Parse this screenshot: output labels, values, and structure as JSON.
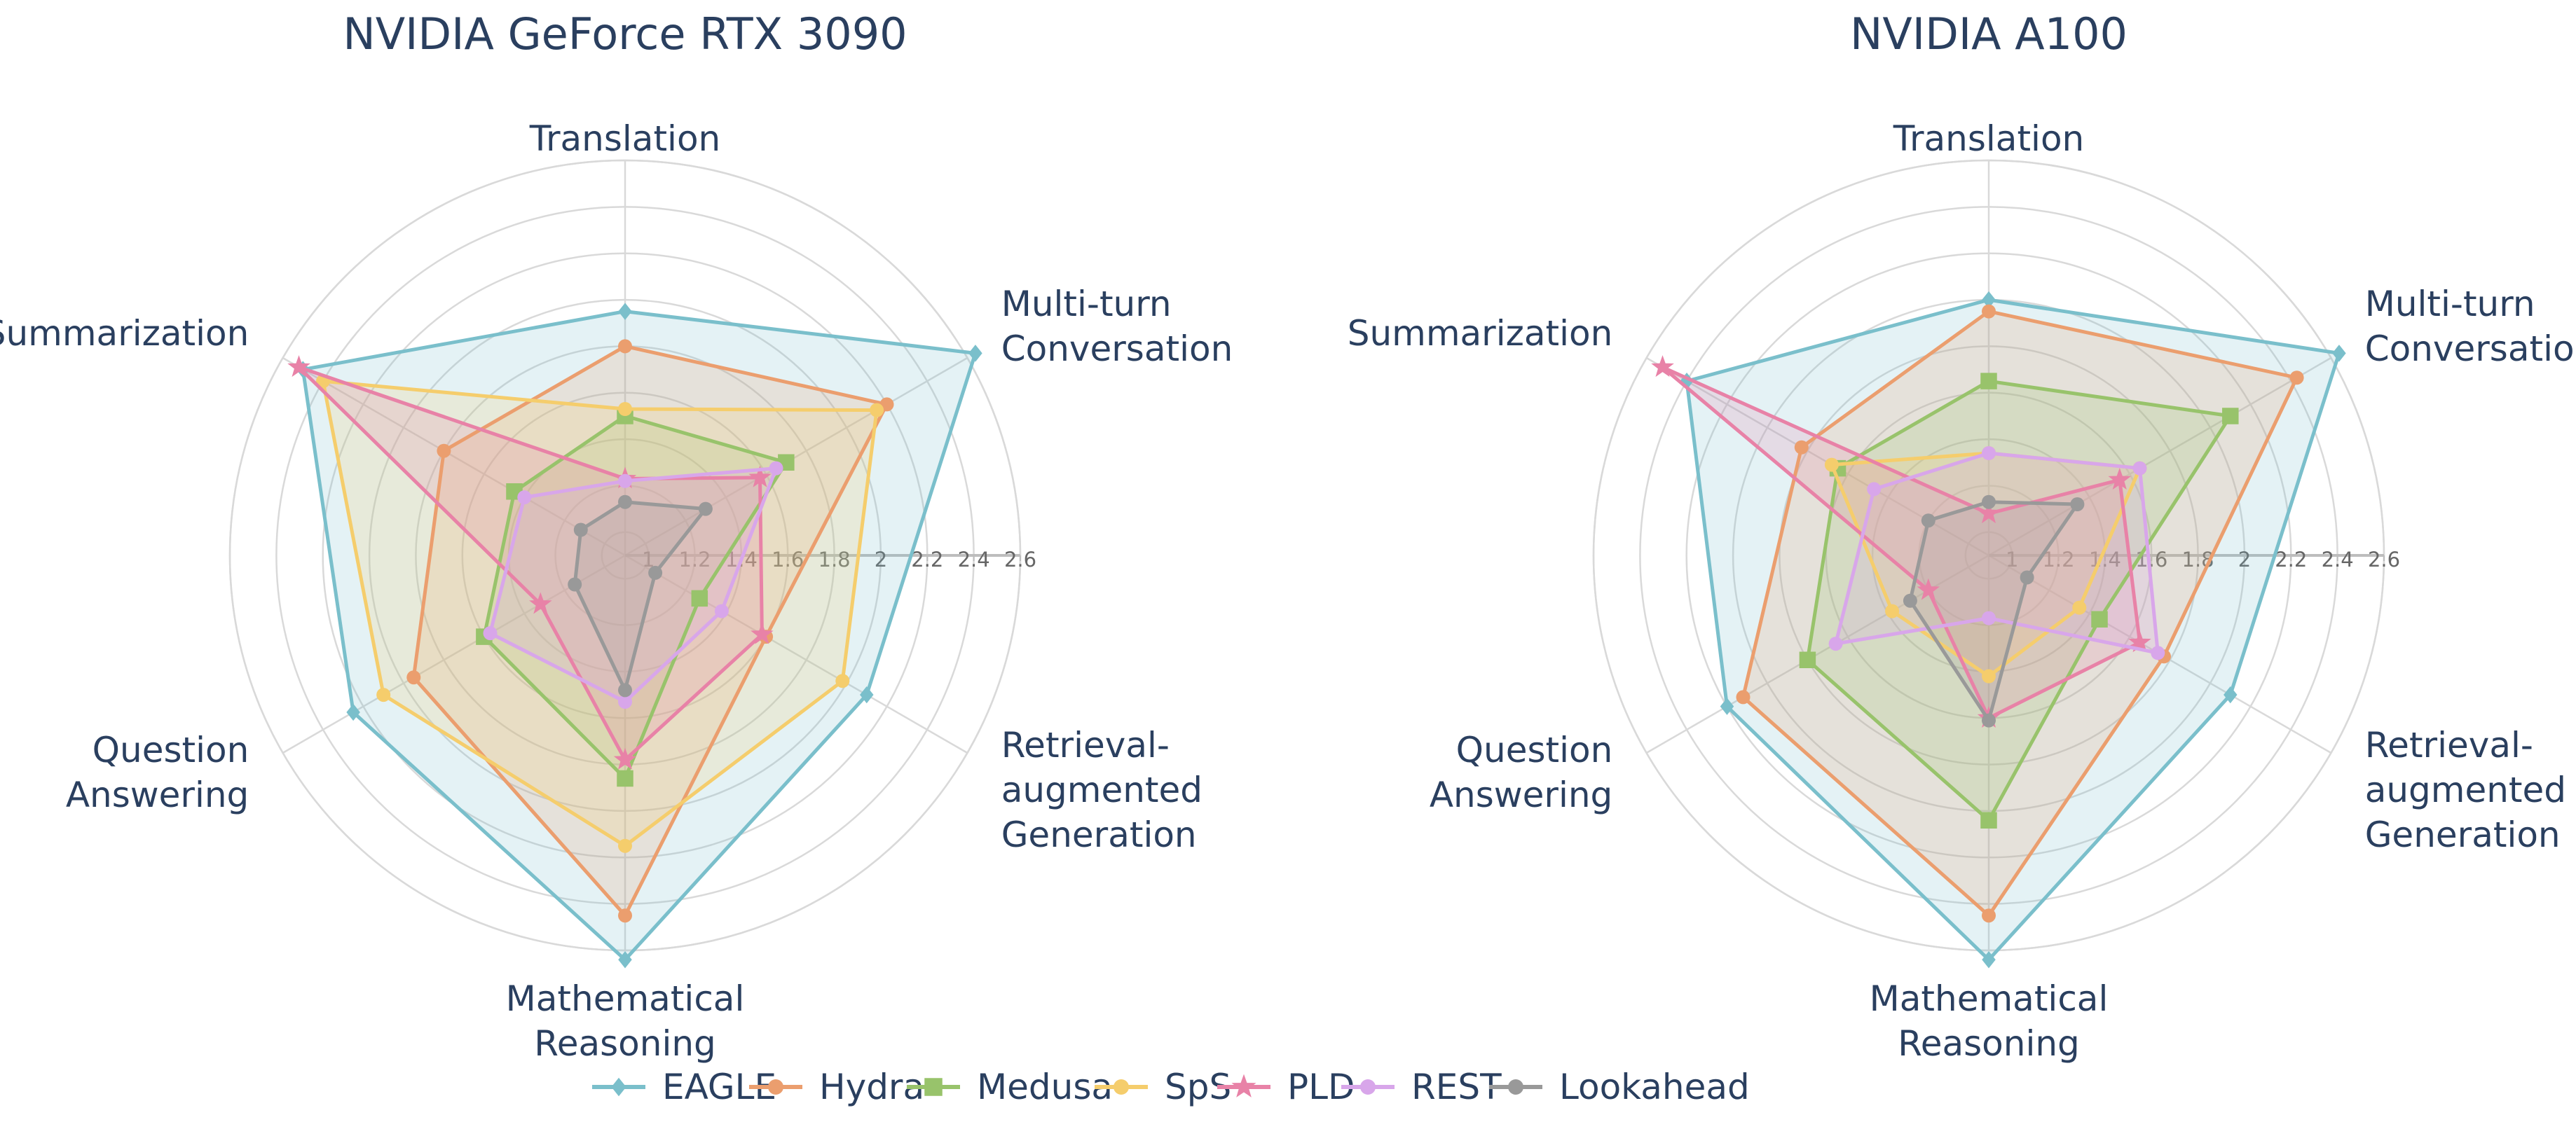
{
  "chart_data": {
    "type": "radar",
    "axes": [
      "Translation",
      "Multi-turn Conversation",
      "Retrieval-augmented Generation",
      "Mathematical Reasoning",
      "Question Answering",
      "Summarization"
    ],
    "radial_ticks": [
      "1",
      "1.2",
      "1.4",
      "1.6",
      "1.8",
      "2",
      "2.2",
      "2.4",
      "2.6"
    ],
    "radial_range": [
      0.9,
      2.6
    ],
    "grid": true,
    "legend_position": "bottom",
    "series": [
      {
        "name": "EAGLE",
        "color": "#7ABFCB",
        "marker": "diamond"
      },
      {
        "name": "Hydra",
        "color": "#EB9E6E",
        "marker": "circle"
      },
      {
        "name": "Medusa",
        "color": "#98C36B",
        "marker": "square"
      },
      {
        "name": "SpS",
        "color": "#F5CD6C",
        "marker": "circle"
      },
      {
        "name": "PLD",
        "color": "#E882A7",
        "marker": "star"
      },
      {
        "name": "REST",
        "color": "#D8A6EA",
        "marker": "circle"
      },
      {
        "name": "Lookahead",
        "color": "#999999",
        "marker": "circle"
      }
    ],
    "charts": [
      {
        "title": "NVIDIA GeForce RTX 3090",
        "values": {
          "EAGLE": [
            1.95,
            2.64,
            2.1,
            2.64,
            2.25,
            2.5
          ],
          "Hydra": [
            1.8,
            2.2,
            1.6,
            2.45,
            1.95,
            1.8
          ],
          "Medusa": [
            1.5,
            1.7,
            1.27,
            1.86,
            1.6,
            1.45
          ],
          "SpS": [
            1.53,
            2.15,
            1.98,
            2.15,
            2.1,
            2.4
          ],
          "PLD": [
            1.23,
            1.57,
            1.58,
            1.78,
            1.32,
            2.52
          ],
          "REST": [
            1.22,
            1.65,
            1.38,
            1.53,
            1.57,
            1.4
          ],
          "Lookahead": [
            1.13,
            1.3,
            1.05,
            1.48,
            1.15,
            1.12
          ]
        }
      },
      {
        "title": "NVIDIA A100",
        "values": {
          "EAGLE": [
            2.0,
            2.64,
            2.1,
            2.64,
            2.2,
            2.4
          ],
          "Hydra": [
            1.95,
            2.43,
            1.77,
            2.45,
            2.12,
            1.83
          ],
          "Medusa": [
            1.65,
            2.1,
            1.45,
            2.04,
            1.8,
            1.65
          ],
          "SpS": [
            1.34,
            1.65,
            1.35,
            1.42,
            1.38,
            1.68
          ],
          "PLD": [
            1.08,
            1.55,
            1.65,
            1.6,
            1.2,
            2.52
          ],
          "REST": [
            1.34,
            1.65,
            1.74,
            1.17,
            1.66,
            1.47
          ],
          "Lookahead": [
            1.13,
            1.34,
            1.09,
            1.61,
            1.29,
            1.2
          ]
        }
      }
    ]
  }
}
